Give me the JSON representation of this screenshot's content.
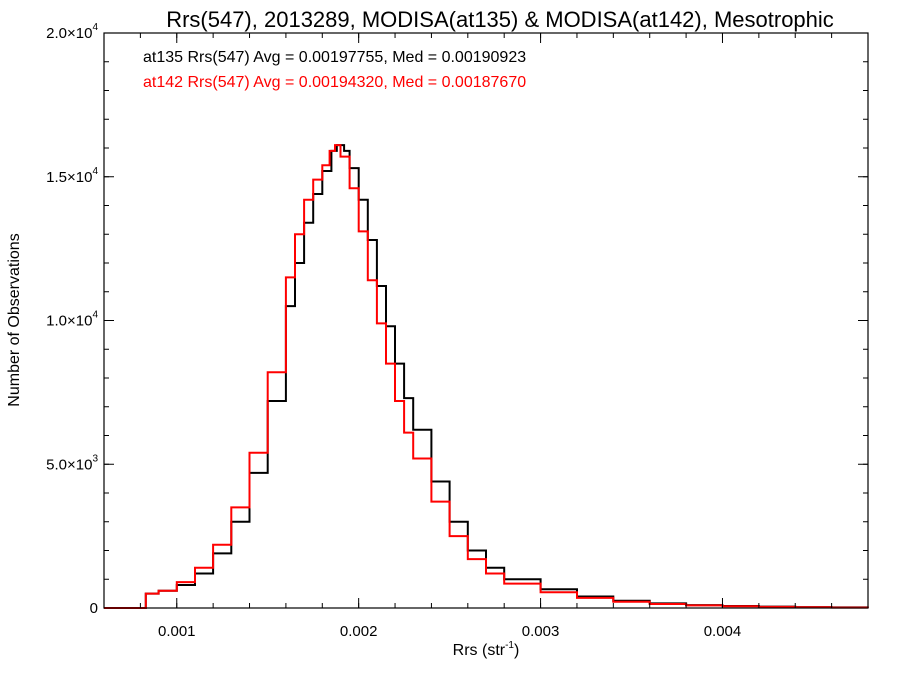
{
  "chart_data": {
    "type": "line",
    "step": true,
    "title": "Rrs(547), 2013289, MODISA(at135) & MODISA(at142), Mesotrophic",
    "xlabel": "Rrs (str",
    "xlabel_sup": "-1",
    "xlabel_end": ")",
    "ylabel": "Number of Observations",
    "xlim": [
      0.0006,
      0.0048
    ],
    "ylim": [
      0,
      20000
    ],
    "grid": false,
    "x_ticks": [
      {
        "value": 0.001,
        "label": "0.001"
      },
      {
        "value": 0.002,
        "label": "0.002"
      },
      {
        "value": 0.003,
        "label": "0.003"
      },
      {
        "value": 0.004,
        "label": "0.004"
      }
    ],
    "y_ticks": [
      {
        "value": 0,
        "mant": "0",
        "exp": ""
      },
      {
        "value": 5000,
        "mant": "5.0×10",
        "exp": "3"
      },
      {
        "value": 10000,
        "mant": "1.0×10",
        "exp": "4"
      },
      {
        "value": 15000,
        "mant": "1.5×10",
        "exp": "4"
      },
      {
        "value": 20000,
        "mant": "2.0×10",
        "exp": "4"
      }
    ],
    "x_minor_step": 0.0002,
    "y_minor_step": 1000,
    "annotations": [
      {
        "text": "at135 Rrs(547) Avg = 0.00197755, Med = 0.00190923",
        "color": "#000000"
      },
      {
        "text": "at142 Rrs(547) Avg = 0.00194320, Med = 0.00187670",
        "color": "#ff0000"
      }
    ],
    "series": [
      {
        "color": "#000000",
        "x": [
          0.0006,
          0.0008,
          0.00083,
          0.0009,
          0.001,
          0.0011,
          0.0012,
          0.0013,
          0.0014,
          0.0015,
          0.0016,
          0.00165,
          0.0017,
          0.00175,
          0.0018,
          0.00185,
          0.00188,
          0.0019,
          0.00192,
          0.00195,
          0.002,
          0.00205,
          0.0021,
          0.00215,
          0.0022,
          0.00225,
          0.0023,
          0.0024,
          0.0025,
          0.0026,
          0.0027,
          0.0028,
          0.003,
          0.0032,
          0.0034,
          0.0036,
          0.0038,
          0.004,
          0.0042,
          0.0044,
          0.0046,
          0.0048
        ],
        "y": [
          0,
          0,
          500,
          600,
          800,
          1200,
          1900,
          3000,
          4700,
          7200,
          10500,
          12000,
          13400,
          14400,
          15200,
          15900,
          16100,
          16100,
          15900,
          15300,
          14200,
          12800,
          11200,
          9800,
          8500,
          7300,
          6200,
          4400,
          3000,
          2000,
          1400,
          1000,
          650,
          400,
          250,
          160,
          100,
          70,
          50,
          30,
          20,
          20
        ]
      },
      {
        "color": "#ff0000",
        "x": [
          0.0006,
          0.0008,
          0.00083,
          0.0009,
          0.001,
          0.0011,
          0.0012,
          0.0013,
          0.0014,
          0.0015,
          0.0016,
          0.00165,
          0.0017,
          0.00175,
          0.0018,
          0.00184,
          0.00187,
          0.0019,
          0.00195,
          0.002,
          0.00205,
          0.0021,
          0.00215,
          0.0022,
          0.00225,
          0.0023,
          0.0024,
          0.0025,
          0.0026,
          0.0027,
          0.0028,
          0.003,
          0.0032,
          0.0034,
          0.0036,
          0.0038,
          0.004,
          0.0042,
          0.0044,
          0.0046,
          0.0048
        ],
        "y": [
          0,
          0,
          500,
          600,
          900,
          1400,
          2200,
          3500,
          5400,
          8200,
          11500,
          13000,
          14200,
          14900,
          15400,
          15900,
          16100,
          15700,
          14600,
          13100,
          11400,
          9900,
          8500,
          7200,
          6100,
          5200,
          3700,
          2500,
          1700,
          1200,
          850,
          550,
          350,
          220,
          140,
          90,
          60,
          40,
          25,
          15,
          10
        ]
      }
    ]
  }
}
